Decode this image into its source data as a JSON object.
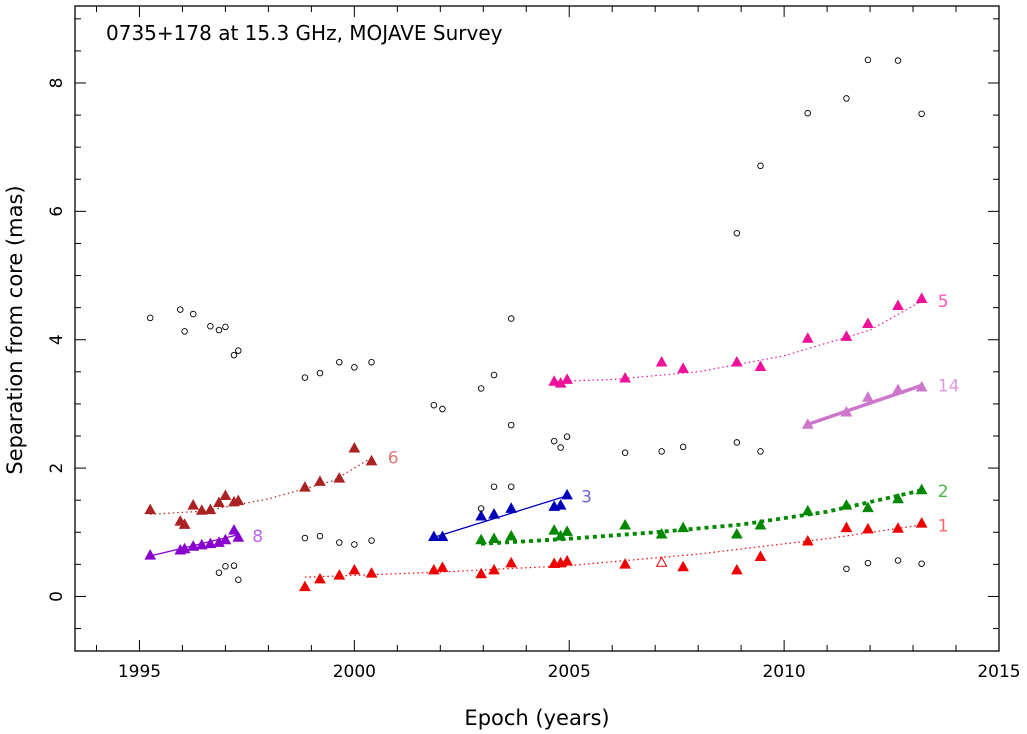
{
  "chart_data": {
    "type": "scatter",
    "title": "0735+178 at 15.3 GHz, MOJAVE Survey",
    "xlabel": "Epoch (years)",
    "ylabel": "Separation from core (mas)",
    "xlim": [
      1993.5,
      2015.0
    ],
    "ylim": [
      -0.85,
      9.2
    ],
    "xticks": [
      1995,
      2000,
      2005,
      2010,
      2015
    ],
    "yticks": [
      0,
      2,
      4,
      6,
      8
    ],
    "grid": false,
    "components": [
      {
        "name": "1",
        "label": "1",
        "color": "#ee0000",
        "label_color": "#ff6666",
        "fit": "dotted",
        "fit_points": [
          [
            1998.85,
            0.3
          ],
          [
            2002,
            0.38
          ],
          [
            2005,
            0.48
          ],
          [
            2008,
            0.66
          ],
          [
            2011,
            0.9
          ],
          [
            2013.25,
            1.12
          ]
        ],
        "points": [
          [
            1998.85,
            0.15
          ],
          [
            1999.2,
            0.27
          ],
          [
            1999.65,
            0.33
          ],
          [
            2000.0,
            0.41
          ],
          [
            2000.4,
            0.36
          ],
          [
            2001.85,
            0.41
          ],
          [
            2002.05,
            0.45
          ],
          [
            2002.95,
            0.35
          ],
          [
            2003.25,
            0.41
          ],
          [
            2003.65,
            0.52
          ],
          [
            2004.65,
            0.51
          ],
          [
            2004.8,
            0.52
          ],
          [
            2004.95,
            0.55
          ],
          [
            2006.3,
            0.5
          ],
          [
            2007.65,
            0.46
          ],
          [
            2008.9,
            0.41
          ],
          [
            2009.45,
            0.62
          ],
          [
            2010.55,
            0.86
          ],
          [
            2011.45,
            1.07
          ],
          [
            2011.95,
            1.05
          ],
          [
            2012.65,
            1.06
          ],
          [
            2013.2,
            1.14
          ]
        ],
        "open_points": [
          [
            2007.15,
            0.53
          ]
        ]
      },
      {
        "name": "2",
        "label": "2",
        "color": "#008800",
        "label_color": "#44bb44",
        "fit": "thick-dotted",
        "fit_points": [
          [
            2002.95,
            0.82
          ],
          [
            2004,
            0.86
          ],
          [
            2005,
            0.9
          ],
          [
            2007,
            1.0
          ],
          [
            2009,
            1.12
          ],
          [
            2011,
            1.32
          ],
          [
            2013.25,
            1.66
          ]
        ],
        "points": [
          [
            2002.95,
            0.88
          ],
          [
            2003.25,
            0.9
          ],
          [
            2003.65,
            0.94
          ],
          [
            2004.65,
            1.03
          ],
          [
            2004.8,
            0.94
          ],
          [
            2004.95,
            1.01
          ],
          [
            2006.3,
            1.11
          ],
          [
            2007.15,
            0.97
          ],
          [
            2007.65,
            1.07
          ],
          [
            2008.9,
            0.97
          ],
          [
            2009.45,
            1.11
          ],
          [
            2010.55,
            1.33
          ],
          [
            2011.45,
            1.42
          ],
          [
            2011.95,
            1.38
          ],
          [
            2012.65,
            1.52
          ],
          [
            2013.2,
            1.66
          ]
        ]
      },
      {
        "name": "3",
        "label": "3",
        "color": "#0000bb",
        "label_color": "#6666dd",
        "fit": "solid",
        "fit_points": [
          [
            2001.85,
            0.92
          ],
          [
            2004.95,
            1.57
          ]
        ],
        "points": [
          [
            2001.85,
            0.93
          ],
          [
            2002.05,
            0.93
          ],
          [
            2002.95,
            1.25
          ],
          [
            2003.25,
            1.28
          ],
          [
            2003.65,
            1.37
          ],
          [
            2004.65,
            1.4
          ],
          [
            2004.8,
            1.42
          ],
          [
            2004.95,
            1.58
          ]
        ]
      },
      {
        "name": "5",
        "label": "5",
        "color": "#ee1199",
        "label_color": "#ff55bb",
        "fit": "dotted",
        "fit_points": [
          [
            2004.6,
            3.35
          ],
          [
            2006,
            3.38
          ],
          [
            2008,
            3.5
          ],
          [
            2010,
            3.75
          ],
          [
            2012,
            4.15
          ],
          [
            2013.25,
            4.62
          ]
        ],
        "points": [
          [
            2004.65,
            3.35
          ],
          [
            2004.8,
            3.32
          ],
          [
            2004.95,
            3.38
          ],
          [
            2006.3,
            3.4
          ],
          [
            2007.15,
            3.65
          ],
          [
            2007.65,
            3.55
          ],
          [
            2008.9,
            3.65
          ],
          [
            2009.45,
            3.58
          ],
          [
            2010.55,
            4.02
          ],
          [
            2011.45,
            4.05
          ],
          [
            2011.95,
            4.25
          ],
          [
            2012.65,
            4.53
          ],
          [
            2013.2,
            4.64
          ]
        ]
      },
      {
        "name": "6",
        "label": "6",
        "color": "#aa2222",
        "label_color": "#dd7777",
        "fit": "dotted",
        "fit_points": [
          [
            1995.25,
            1.28
          ],
          [
            1996.5,
            1.33
          ],
          [
            1998,
            1.52
          ],
          [
            1999.5,
            1.8
          ],
          [
            2000.45,
            2.18
          ]
        ],
        "points": [
          [
            1995.25,
            1.35
          ],
          [
            1995.95,
            1.17
          ],
          [
            1996.05,
            1.12
          ],
          [
            1996.25,
            1.42
          ],
          [
            1996.45,
            1.34
          ],
          [
            1996.65,
            1.35
          ],
          [
            1996.85,
            1.46
          ],
          [
            1997.0,
            1.57
          ],
          [
            1997.2,
            1.47
          ],
          [
            1997.3,
            1.49
          ],
          [
            1998.85,
            1.7
          ],
          [
            1999.2,
            1.79
          ],
          [
            1999.65,
            1.84
          ],
          [
            2000.0,
            2.31
          ],
          [
            2000.4,
            2.11
          ]
        ]
      },
      {
        "name": "8",
        "label": "8",
        "color": "#8800cc",
        "label_color": "#bb66ee",
        "fit": "solid",
        "fit_points": [
          [
            1995.25,
            0.63
          ],
          [
            1997.3,
            0.96
          ]
        ],
        "points": [
          [
            1995.25,
            0.64
          ],
          [
            1995.95,
            0.72
          ],
          [
            1996.05,
            0.74
          ],
          [
            1996.25,
            0.78
          ],
          [
            1996.45,
            0.8
          ],
          [
            1996.65,
            0.82
          ],
          [
            1996.85,
            0.84
          ],
          [
            1997.0,
            0.88
          ],
          [
            1997.2,
            1.03
          ],
          [
            1997.3,
            0.92
          ]
        ]
      },
      {
        "name": "14",
        "label": "14",
        "color": "#cc77cc",
        "label_color": "#dd99dd",
        "fit": "thick-solid",
        "fit_points": [
          [
            2010.55,
            2.68
          ],
          [
            2013.25,
            3.3
          ]
        ],
        "points": [
          [
            2010.55,
            2.68
          ],
          [
            2011.45,
            2.87
          ],
          [
            2011.95,
            3.1
          ],
          [
            2012.65,
            3.22
          ],
          [
            2013.2,
            3.26
          ]
        ]
      }
    ],
    "unassigned_points": [
      [
        1995.25,
        4.34
      ],
      [
        1995.95,
        4.47
      ],
      [
        1996.05,
        4.13
      ],
      [
        1996.25,
        4.4
      ],
      [
        1996.65,
        4.21
      ],
      [
        1996.85,
        4.15
      ],
      [
        1997.0,
        4.2
      ],
      [
        1997.2,
        3.76
      ],
      [
        1997.3,
        3.83
      ],
      [
        1996.85,
        0.37
      ],
      [
        1997.0,
        0.47
      ],
      [
        1997.2,
        0.48
      ],
      [
        1997.3,
        0.26
      ],
      [
        1998.85,
        3.41
      ],
      [
        1999.2,
        3.48
      ],
      [
        1999.65,
        3.65
      ],
      [
        2000.0,
        3.57
      ],
      [
        2000.4,
        3.65
      ],
      [
        1998.85,
        0.91
      ],
      [
        1999.2,
        0.94
      ],
      [
        1999.65,
        0.84
      ],
      [
        2000.0,
        0.81
      ],
      [
        2000.4,
        0.87
      ],
      [
        2001.85,
        2.98
      ],
      [
        2002.05,
        2.92
      ],
      [
        2002.95,
        3.24
      ],
      [
        2003.25,
        3.45
      ],
      [
        2003.65,
        4.33
      ],
      [
        2003.65,
        2.67
      ],
      [
        2002.95,
        1.37
      ],
      [
        2003.25,
        1.71
      ],
      [
        2003.65,
        1.71
      ],
      [
        2004.65,
        2.42
      ],
      [
        2004.8,
        2.32
      ],
      [
        2004.95,
        2.49
      ],
      [
        2006.3,
        2.24
      ],
      [
        2007.15,
        2.26
      ],
      [
        2007.65,
        2.33
      ],
      [
        2008.9,
        5.66
      ],
      [
        2008.9,
        2.4
      ],
      [
        2009.45,
        6.71
      ],
      [
        2009.45,
        2.26
      ],
      [
        2010.55,
        7.53
      ],
      [
        2011.45,
        7.76
      ],
      [
        2011.95,
        8.36
      ],
      [
        2012.65,
        8.35
      ],
      [
        2013.2,
        7.52
      ],
      [
        2011.45,
        0.43
      ],
      [
        2011.95,
        0.52
      ],
      [
        2012.65,
        0.56
      ],
      [
        2013.2,
        0.51
      ]
    ],
    "unassigned_color": "#000000"
  }
}
